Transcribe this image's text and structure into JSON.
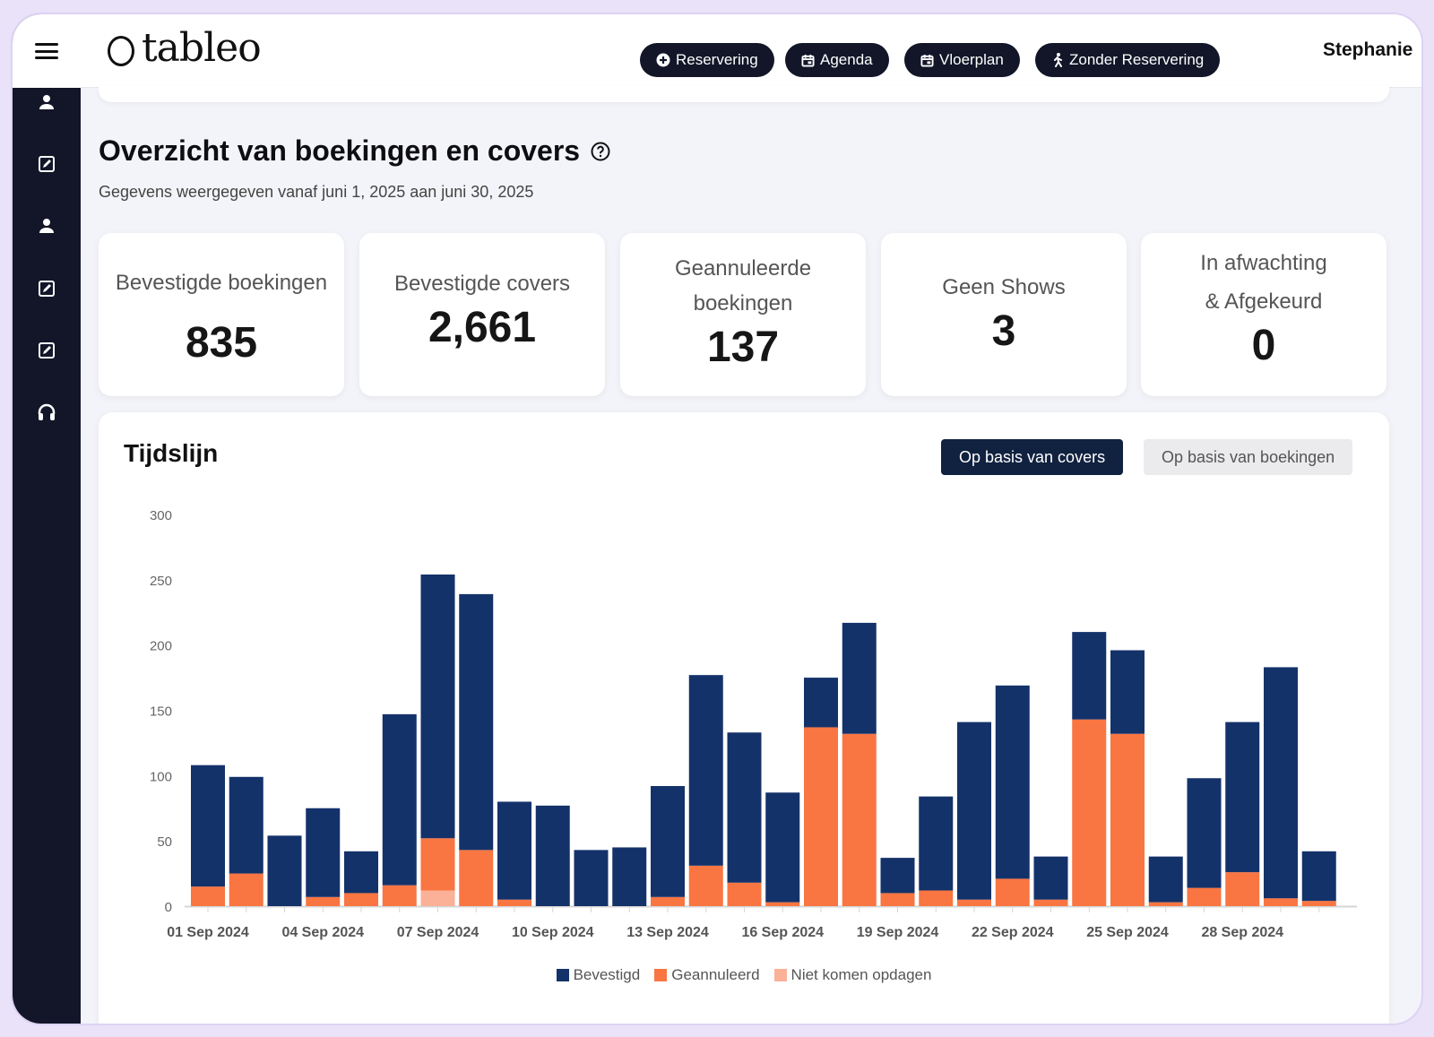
{
  "app": {
    "logo": "tableo",
    "user": "Stephanie"
  },
  "topbar": {
    "buttons": [
      {
        "label": "Reservering",
        "icon": "plus-circle-icon"
      },
      {
        "label": "Agenda",
        "icon": "calendar-icon"
      },
      {
        "label": "Vloerplan",
        "icon": "calendar-icon"
      },
      {
        "label": "Zonder Reservering",
        "icon": "walking-person-icon"
      }
    ]
  },
  "sidebar": {
    "icons": [
      "person-icon",
      "edit-icon",
      "person-icon",
      "edit-icon",
      "edit-icon",
      "headset-icon"
    ]
  },
  "overview": {
    "title": "Overzicht van boekingen en covers",
    "subtitle": "Gegevens weergegeven vanaf juni 1, 2025 aan juni 30, 2025"
  },
  "stats": [
    {
      "label": "Bevestigde boekingen",
      "value": "835"
    },
    {
      "label": "Bevestigde covers",
      "value": "2,661"
    },
    {
      "label_line1": "Geannuleerde",
      "label_line2": "boekingen",
      "value": "137"
    },
    {
      "label": "Geen Shows",
      "value": "3"
    },
    {
      "label_line1": "In afwachting",
      "label_line2": "& Afgekeurd",
      "value": "0"
    }
  ],
  "timeline": {
    "title": "Tijdslijn",
    "toggle_active": "Op basis van covers",
    "toggle_inactive": "Op basis van boekingen"
  },
  "colors": {
    "bevestigd": "#14326a",
    "geannuleerd": "#f97542",
    "niet_komen": "#fbb197",
    "dark": "#121628"
  },
  "chart_data": {
    "type": "bar",
    "stacked": true,
    "title": "Tijdslijn",
    "ylim": [
      0,
      300
    ],
    "yticks": [
      0,
      50,
      100,
      150,
      200,
      250,
      300
    ],
    "x_tick_labels": [
      "01 Sep 2024",
      "04 Sep 2024",
      "07 Sep 2024",
      "10 Sep 2024",
      "13 Sep 2024",
      "16 Sep 2024",
      "19 Sep 2024",
      "22 Sep 2024",
      "25 Sep 2024",
      "28 Sep 2024"
    ],
    "categories": [
      "01 Sep 2024",
      "02 Sep 2024",
      "03 Sep 2024",
      "04 Sep 2024",
      "05 Sep 2024",
      "06 Sep 2024",
      "07 Sep 2024",
      "08 Sep 2024",
      "09 Sep 2024",
      "10 Sep 2024",
      "11 Sep 2024",
      "12 Sep 2024",
      "13 Sep 2024",
      "14 Sep 2024",
      "15 Sep 2024",
      "16 Sep 2024",
      "17 Sep 2024",
      "18 Sep 2024",
      "19 Sep 2024",
      "20 Sep 2024",
      "21 Sep 2024",
      "22 Sep 2024",
      "23 Sep 2024",
      "24 Sep 2024",
      "25 Sep 2024",
      "26 Sep 2024",
      "27 Sep 2024",
      "28 Sep 2024",
      "29 Sep 2024",
      "30 Sep 2024"
    ],
    "series": [
      {
        "name": "Niet komen opdagen",
        "values": [
          0,
          0,
          0,
          0,
          0,
          0,
          12,
          0,
          0,
          0,
          0,
          0,
          0,
          0,
          0,
          0,
          0,
          0,
          0,
          0,
          0,
          0,
          0,
          0,
          0,
          0,
          0,
          0,
          0,
          0
        ]
      },
      {
        "name": "Geannuleerd",
        "values": [
          15,
          25,
          0,
          7,
          10,
          16,
          40,
          43,
          5,
          0,
          0,
          0,
          7,
          31,
          18,
          3,
          137,
          132,
          10,
          12,
          5,
          21,
          5,
          143,
          132,
          3,
          14,
          26,
          6,
          4
        ]
      },
      {
        "name": "Bevestigd",
        "values": [
          93,
          74,
          54,
          68,
          32,
          131,
          202,
          196,
          75,
          77,
          43,
          45,
          85,
          146,
          115,
          84,
          38,
          85,
          27,
          72,
          136,
          148,
          33,
          67,
          64,
          35,
          84,
          115,
          177,
          38
        ]
      }
    ],
    "legend": [
      "Bevestigd",
      "Geannuleerd",
      "Niet komen opdagen"
    ]
  }
}
